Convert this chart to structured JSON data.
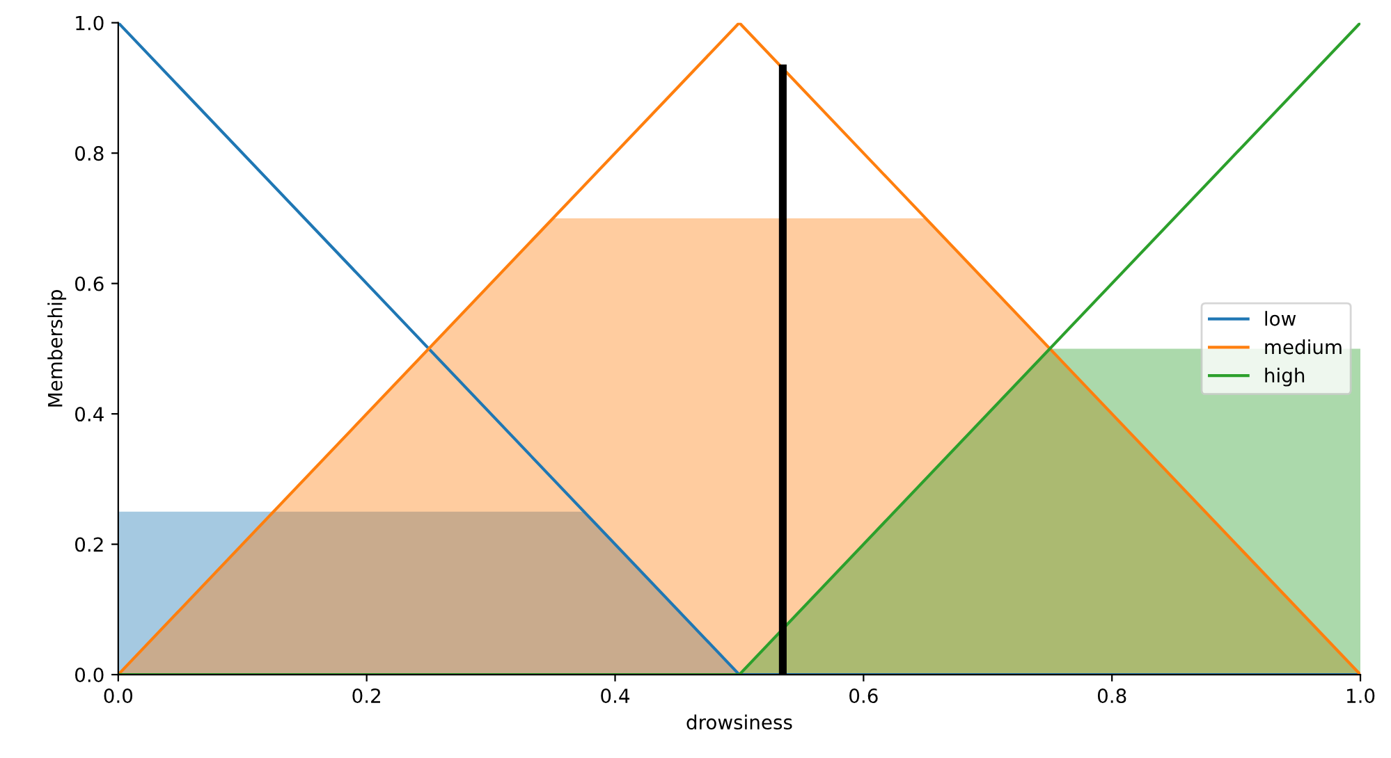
{
  "chart_data": {
    "type": "line",
    "xlabel": "drowsiness",
    "ylabel": "Membership",
    "series": [
      {
        "type": "area",
        "color": "#1f77b4",
        "x": [
          0,
          0.375,
          0.5
        ],
        "values": [
          0.25,
          0.25,
          0
        ]
      },
      {
        "type": "area",
        "color": "#ff7f0e",
        "x": [
          0,
          0.35,
          0.65,
          1
        ],
        "values": [
          0,
          0.7,
          0.7,
          0
        ]
      },
      {
        "type": "area",
        "color": "#2ca02c",
        "x": [
          0.5,
          0.75,
          1
        ],
        "values": [
          0,
          0.5,
          0.5
        ]
      },
      {
        "name": "low",
        "color": "#1f77b4",
        "x": [
          0,
          0.5,
          1
        ],
        "values": [
          1,
          0,
          0
        ]
      },
      {
        "name": "medium",
        "color": "#ff7f0e",
        "x": [
          0,
          0.5,
          1
        ],
        "values": [
          0,
          1,
          0
        ]
      },
      {
        "name": "high",
        "color": "#2ca02c",
        "x": [
          0,
          0.5,
          1
        ],
        "values": [
          0,
          0,
          1
        ]
      },
      {
        "color": "#000000",
        "x": [
          0.535,
          0.535
        ],
        "values": [
          0,
          0.93
        ]
      }
    ],
    "xlim": [
      0,
      1
    ],
    "ylim": [
      0,
      1
    ],
    "xticks": [
      {
        "value": 0,
        "label": "0.0"
      },
      {
        "value": 0.2,
        "label": "0.2"
      },
      {
        "value": 0.4,
        "label": "0.4"
      },
      {
        "value": 0.6,
        "label": "0.6"
      },
      {
        "value": 0.8,
        "label": "0.8"
      },
      {
        "value": 1,
        "label": "1.0"
      }
    ],
    "yticks": [
      {
        "value": 0,
        "label": "0.0"
      },
      {
        "value": 0.2,
        "label": "0.2"
      },
      {
        "value": 0.4,
        "label": "0.4"
      },
      {
        "value": 0.6,
        "label": "0.6"
      },
      {
        "value": 0.8,
        "label": "0.8"
      },
      {
        "value": 1,
        "label": "1.0"
      }
    ],
    "legend": "center right",
    "grid": false
  }
}
